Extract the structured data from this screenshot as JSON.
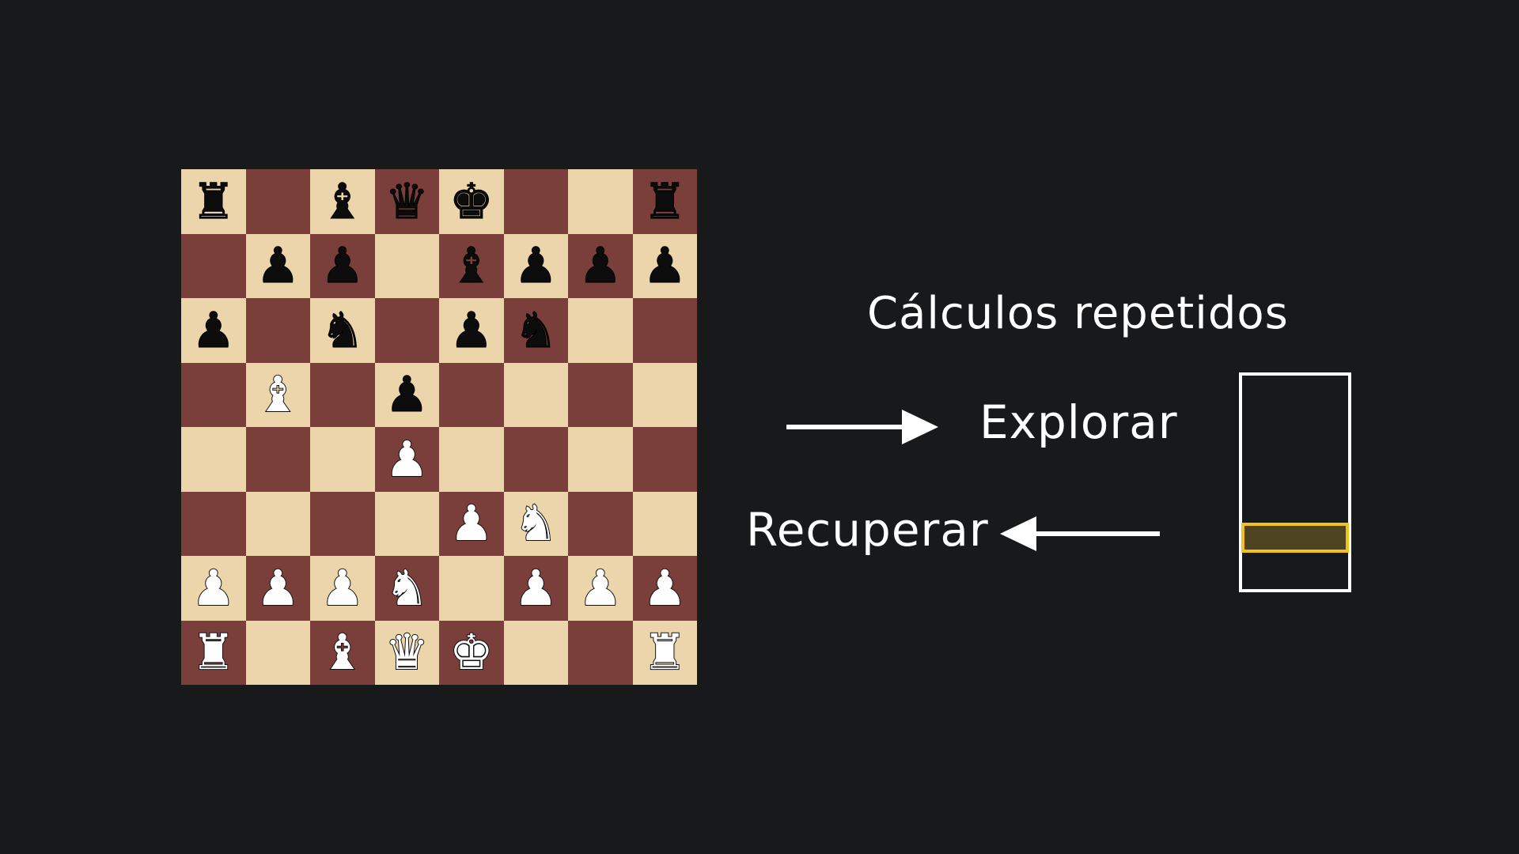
{
  "title": "Cálculos repetidos",
  "explore_label": "Explorar",
  "recover_label": "Recuperar",
  "colors": {
    "background": "#18191b",
    "light_square": "#ecd5aa",
    "dark_square": "#7a3f3a",
    "highlight": "#f2c21b",
    "highlight_fill": "#4f4422",
    "text": "#ffffff"
  },
  "board": {
    "ranks": [
      [
        "br",
        "",
        "bb",
        "bq",
        "bk",
        "",
        "",
        "br"
      ],
      [
        "",
        "bp",
        "bp",
        "",
        "bb",
        "bp",
        "bp",
        "bp"
      ],
      [
        "bp",
        "",
        "bn",
        "",
        "bp",
        "bn",
        "",
        ""
      ],
      [
        "",
        "wb",
        "",
        "bp",
        "",
        "",
        "",
        ""
      ],
      [
        "",
        "",
        "",
        "wp",
        "",
        "",
        "",
        ""
      ],
      [
        "",
        "",
        "",
        "",
        "wp",
        "wn",
        "",
        ""
      ],
      [
        "wp",
        "wp",
        "wp",
        "wn",
        "",
        "wp",
        "wp",
        "wp"
      ],
      [
        "wr",
        "",
        "wb",
        "wq",
        "wk",
        "",
        "",
        "wr"
      ]
    ]
  },
  "memory": {
    "highlighted_slot": "stored result"
  }
}
